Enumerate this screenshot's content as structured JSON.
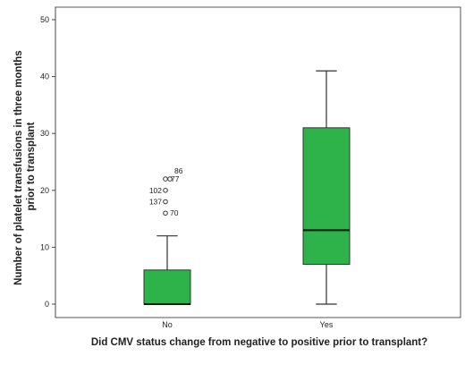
{
  "colors": {
    "box_fill": "#2db34a",
    "box_stroke": "#333333",
    "axis": "#444444",
    "plot_border": "#555555",
    "text": "#222222"
  },
  "chart_data": {
    "type": "boxplot",
    "xlabel": "Did CMV status change from negative to positive prior to transplant?",
    "ylabel_lines": [
      "Number of platelet transfusions in three months",
      "prior to transplant"
    ],
    "ylim": [
      0,
      50
    ],
    "yticks": [
      0,
      10,
      20,
      30,
      40,
      50
    ],
    "grid": false,
    "categories": [
      "No",
      "Yes"
    ],
    "boxes": [
      {
        "category": "No",
        "min": 0,
        "q1": 0,
        "median": 0,
        "q3": 6,
        "max": 12,
        "outliers": [
          {
            "label": "86",
            "value": 22
          },
          {
            "label": "77",
            "value": 22
          },
          {
            "label": "102",
            "value": 20
          },
          {
            "label": "137",
            "value": 18
          },
          {
            "label": "70",
            "value": 16
          }
        ]
      },
      {
        "category": "Yes",
        "min": 0,
        "q1": 7,
        "median": 13,
        "q3": 31,
        "max": 41,
        "outliers": []
      }
    ]
  }
}
